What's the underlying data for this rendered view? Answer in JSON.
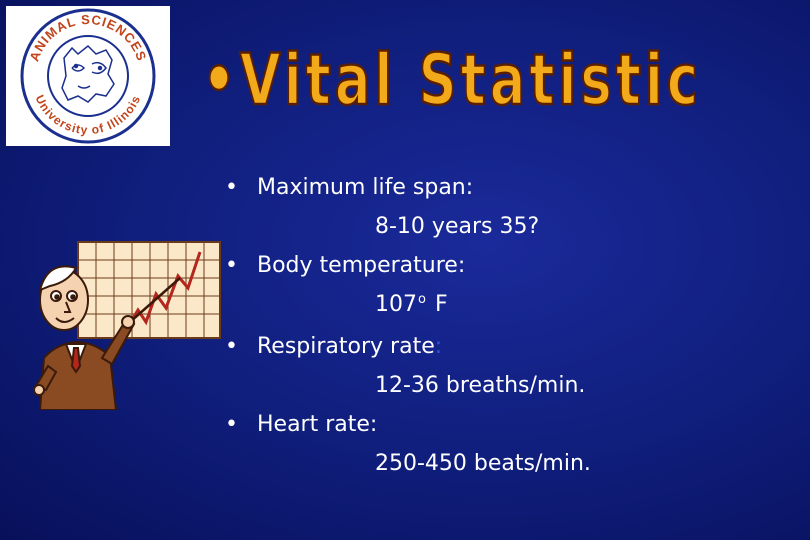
{
  "logo": {
    "arc_top": "ANIMAL SCIENCES",
    "arc_bottom": "University of Illinois"
  },
  "title": "•Vital Statistic",
  "bullets": [
    {
      "label": "Maximum life span:",
      "value": "8-10 years  35?"
    },
    {
      "label": "Body temperature:",
      "value_number": "107",
      "value_degree": "o",
      "value_unit": " F"
    },
    {
      "label": "Respiratory rate",
      "label_colon": ":",
      "value": "12-36 breaths/min."
    },
    {
      "label": "Heart rate:",
      "value": "250-450 beats/min."
    }
  ],
  "bullet_symbol": "•",
  "colors": {
    "background": "#0f1d7a",
    "title_fill": "#f2a91a",
    "title_outline": "#5a1f00",
    "logo_ring": "#1b2f8f",
    "logo_text": "#c2451b",
    "text": "#ffffff"
  }
}
